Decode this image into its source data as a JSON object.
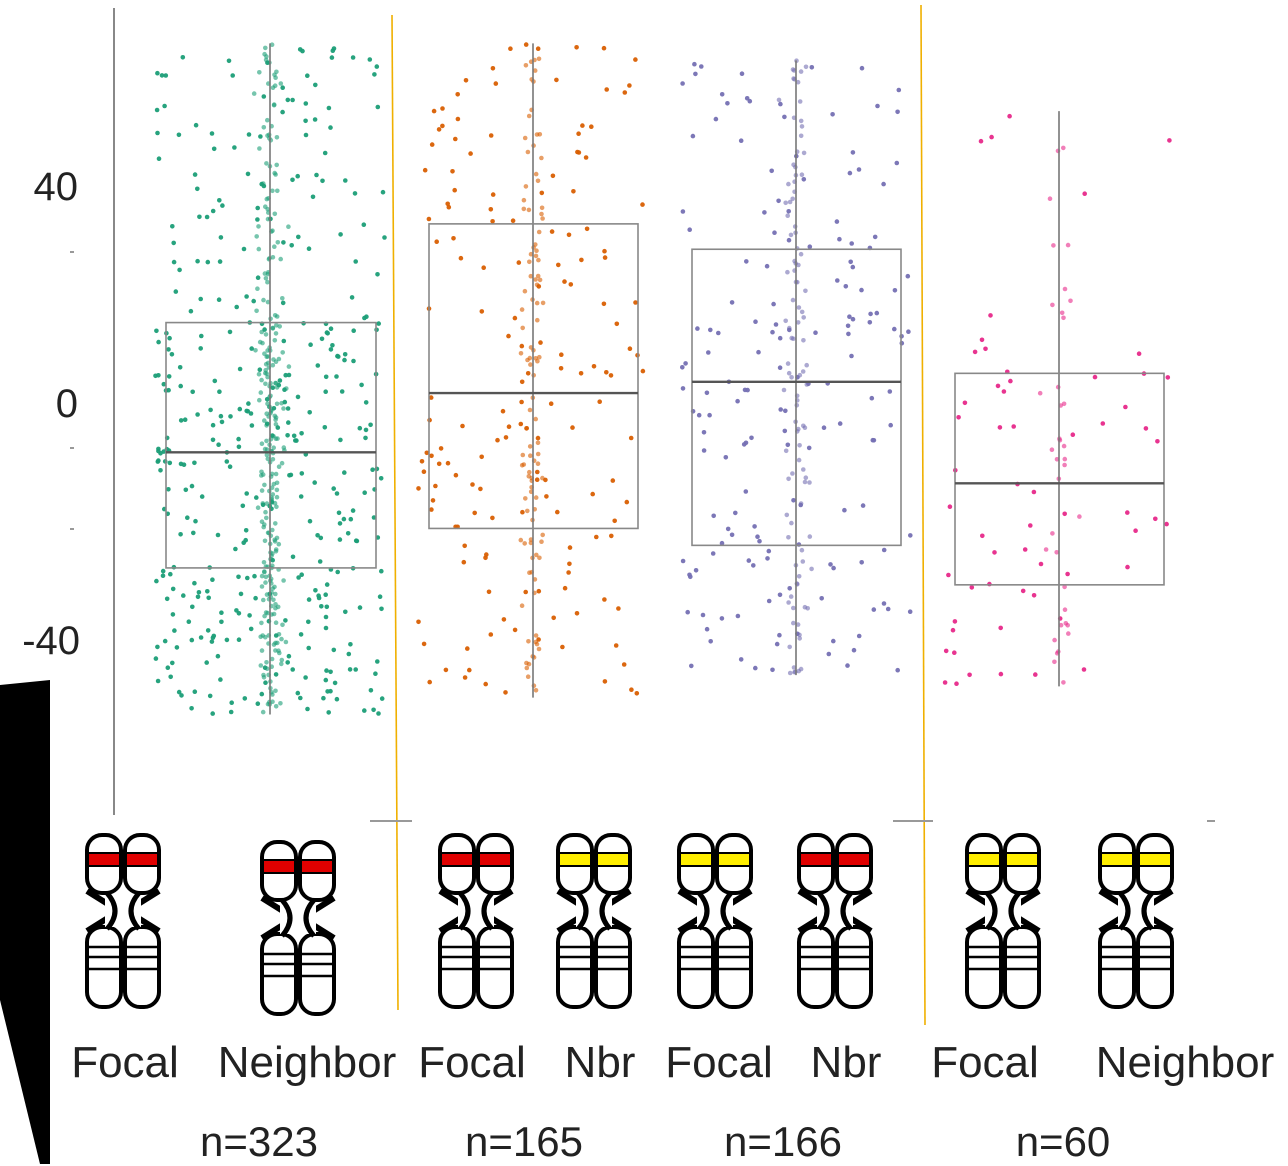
{
  "chart_data": {
    "type": "box",
    "ylim": [
      -72,
      72
    ],
    "yticks": [
      "40",
      "0",
      "-40"
    ],
    "ytick_values": [
      40,
      0,
      -40
    ],
    "categories": [
      "Focal",
      "Neighbor",
      "Focal",
      "Nbr",
      "Focal",
      "Nbr",
      "Focal",
      "Neighbor"
    ],
    "group_counts": [
      "n=323",
      "n=165",
      "n=166",
      "n=60"
    ],
    "series": [
      {
        "color": "#1b9e77",
        "whisker_low": -54,
        "q1": -28,
        "median": -7.5,
        "q3": 15.5,
        "whisker_high": 65,
        "spread": 20
      },
      {
        "color": "#d95f02",
        "whisker_low": -51,
        "q1": -21,
        "median": 3,
        "q3": 33,
        "whisker_high": 65,
        "spread": 18
      },
      {
        "color": "#7570b3",
        "whisker_low": -47,
        "q1": -24,
        "median": 5,
        "q3": 28.5,
        "whisker_high": 62,
        "spread": 18
      },
      {
        "color": "#e7298a",
        "whisker_low": -49,
        "q1": -31,
        "median": -13,
        "q3": 6.5,
        "whisker_high": 53,
        "spread": 18
      }
    ],
    "band_colors": {
      "red": "#e00000",
      "yellow": "#ffee00"
    },
    "chromosome_bands": [
      "red",
      "red",
      "red",
      "yellow",
      "yellow",
      "red",
      "yellow",
      "yellow"
    ]
  }
}
